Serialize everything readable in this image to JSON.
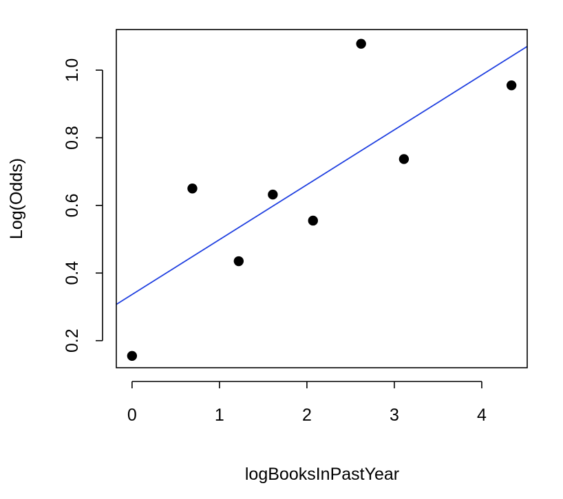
{
  "chart_data": {
    "type": "scatter",
    "xlabel": "logBooksInPastYear",
    "ylabel": "Log(Odds)",
    "xlim": [
      -0.18,
      4.52
    ],
    "ylim": [
      0.12,
      1.12
    ],
    "x_ticks": [
      0,
      1,
      2,
      3,
      4
    ],
    "x_tick_labels": [
      "0",
      "1",
      "2",
      "3",
      "4"
    ],
    "y_ticks": [
      0.2,
      0.4,
      0.6,
      0.8,
      1.0
    ],
    "y_tick_labels": [
      "0.2",
      "0.4",
      "0.6",
      "0.8",
      "1.0"
    ],
    "grid": false,
    "series": [
      {
        "points": [
          {
            "x": 0.0,
            "y": 0.155
          },
          {
            "x": 0.69,
            "y": 0.65
          },
          {
            "x": 1.22,
            "y": 0.435
          },
          {
            "x": 1.61,
            "y": 0.632
          },
          {
            "x": 2.07,
            "y": 0.555
          },
          {
            "x": 2.62,
            "y": 1.078
          },
          {
            "x": 3.11,
            "y": 0.737
          },
          {
            "x": 4.34,
            "y": 0.955
          }
        ],
        "color": "#000000"
      }
    ],
    "fit_line": {
      "intercept": 0.3365,
      "slope": 0.1623,
      "color": "#1f3fe0"
    }
  }
}
